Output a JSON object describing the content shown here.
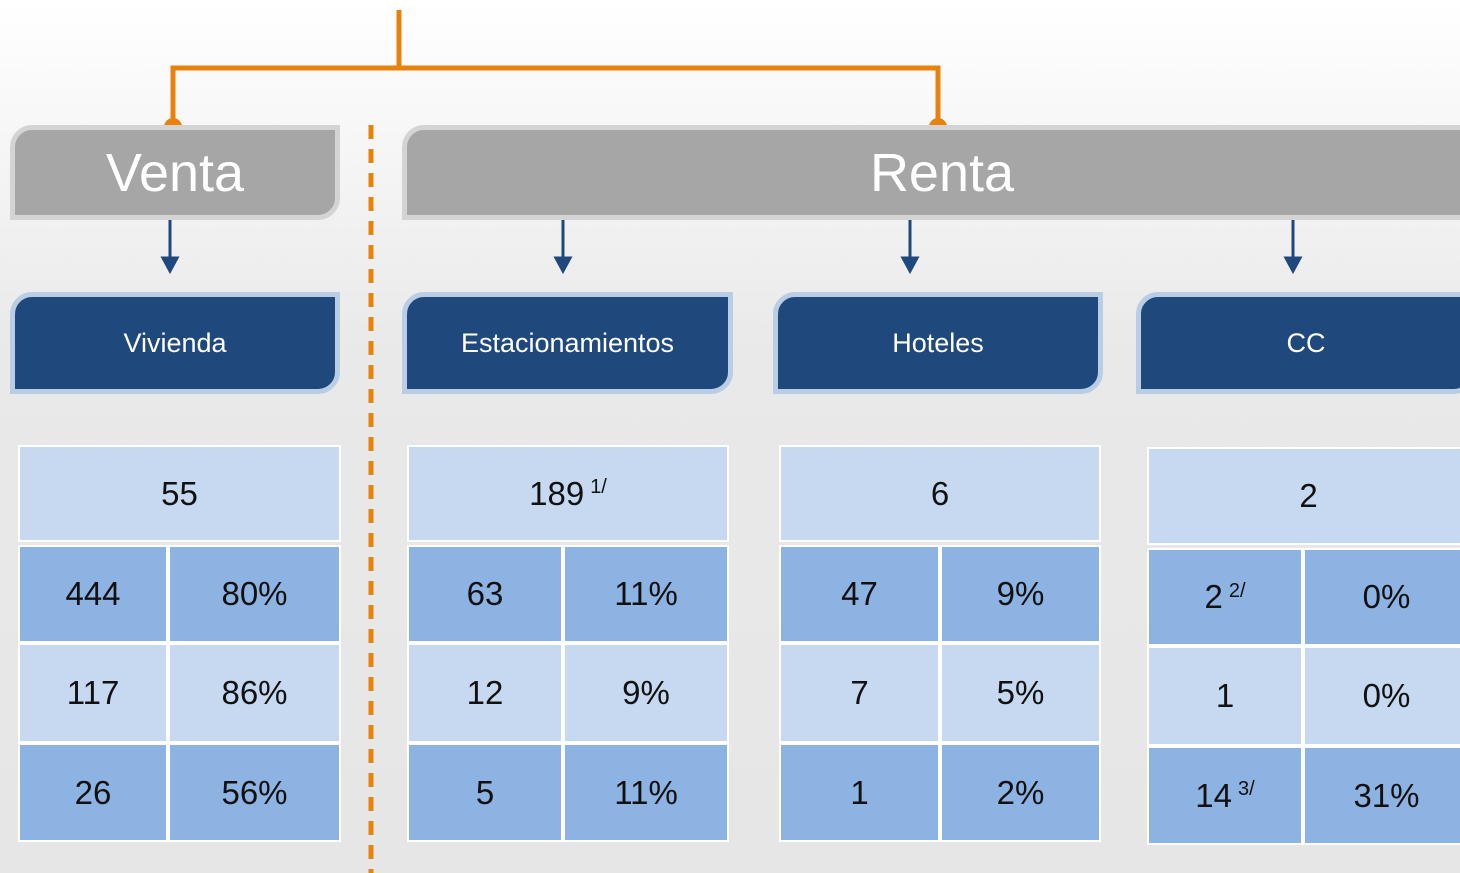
{
  "groups": [
    {
      "label": "Venta"
    },
    {
      "label": "Renta"
    }
  ],
  "categories": [
    {
      "label": "Vivienda",
      "total": {
        "text": "55"
      },
      "rows": [
        [
          {
            "text": "444"
          },
          {
            "text": "80%"
          }
        ],
        [
          {
            "text": "117"
          },
          {
            "text": "86%"
          }
        ],
        [
          {
            "text": "26"
          },
          {
            "text": "56%"
          }
        ]
      ]
    },
    {
      "label": "Estacionamientos",
      "total": {
        "text": "189",
        "note": "1/"
      },
      "rows": [
        [
          {
            "text": "63"
          },
          {
            "text": "11%"
          }
        ],
        [
          {
            "text": "12"
          },
          {
            "text": "9%"
          }
        ],
        [
          {
            "text": "5"
          },
          {
            "text": "11%"
          }
        ]
      ]
    },
    {
      "label": "Hoteles",
      "total": {
        "text": "6"
      },
      "rows": [
        [
          {
            "text": "47"
          },
          {
            "text": "9%"
          }
        ],
        [
          {
            "text": "7"
          },
          {
            "text": "5%"
          }
        ],
        [
          {
            "text": "1"
          },
          {
            "text": "2%"
          }
        ]
      ]
    },
    {
      "label": "CC",
      "total": {
        "text": "2"
      },
      "rows": [
        [
          {
            "text": "2",
            "note": "2/"
          },
          {
            "text": "0%"
          }
        ],
        [
          {
            "text": "1"
          },
          {
            "text": "0%"
          }
        ],
        [
          {
            "text": "14",
            "note": "3/"
          },
          {
            "text": "31%"
          }
        ]
      ]
    }
  ]
}
